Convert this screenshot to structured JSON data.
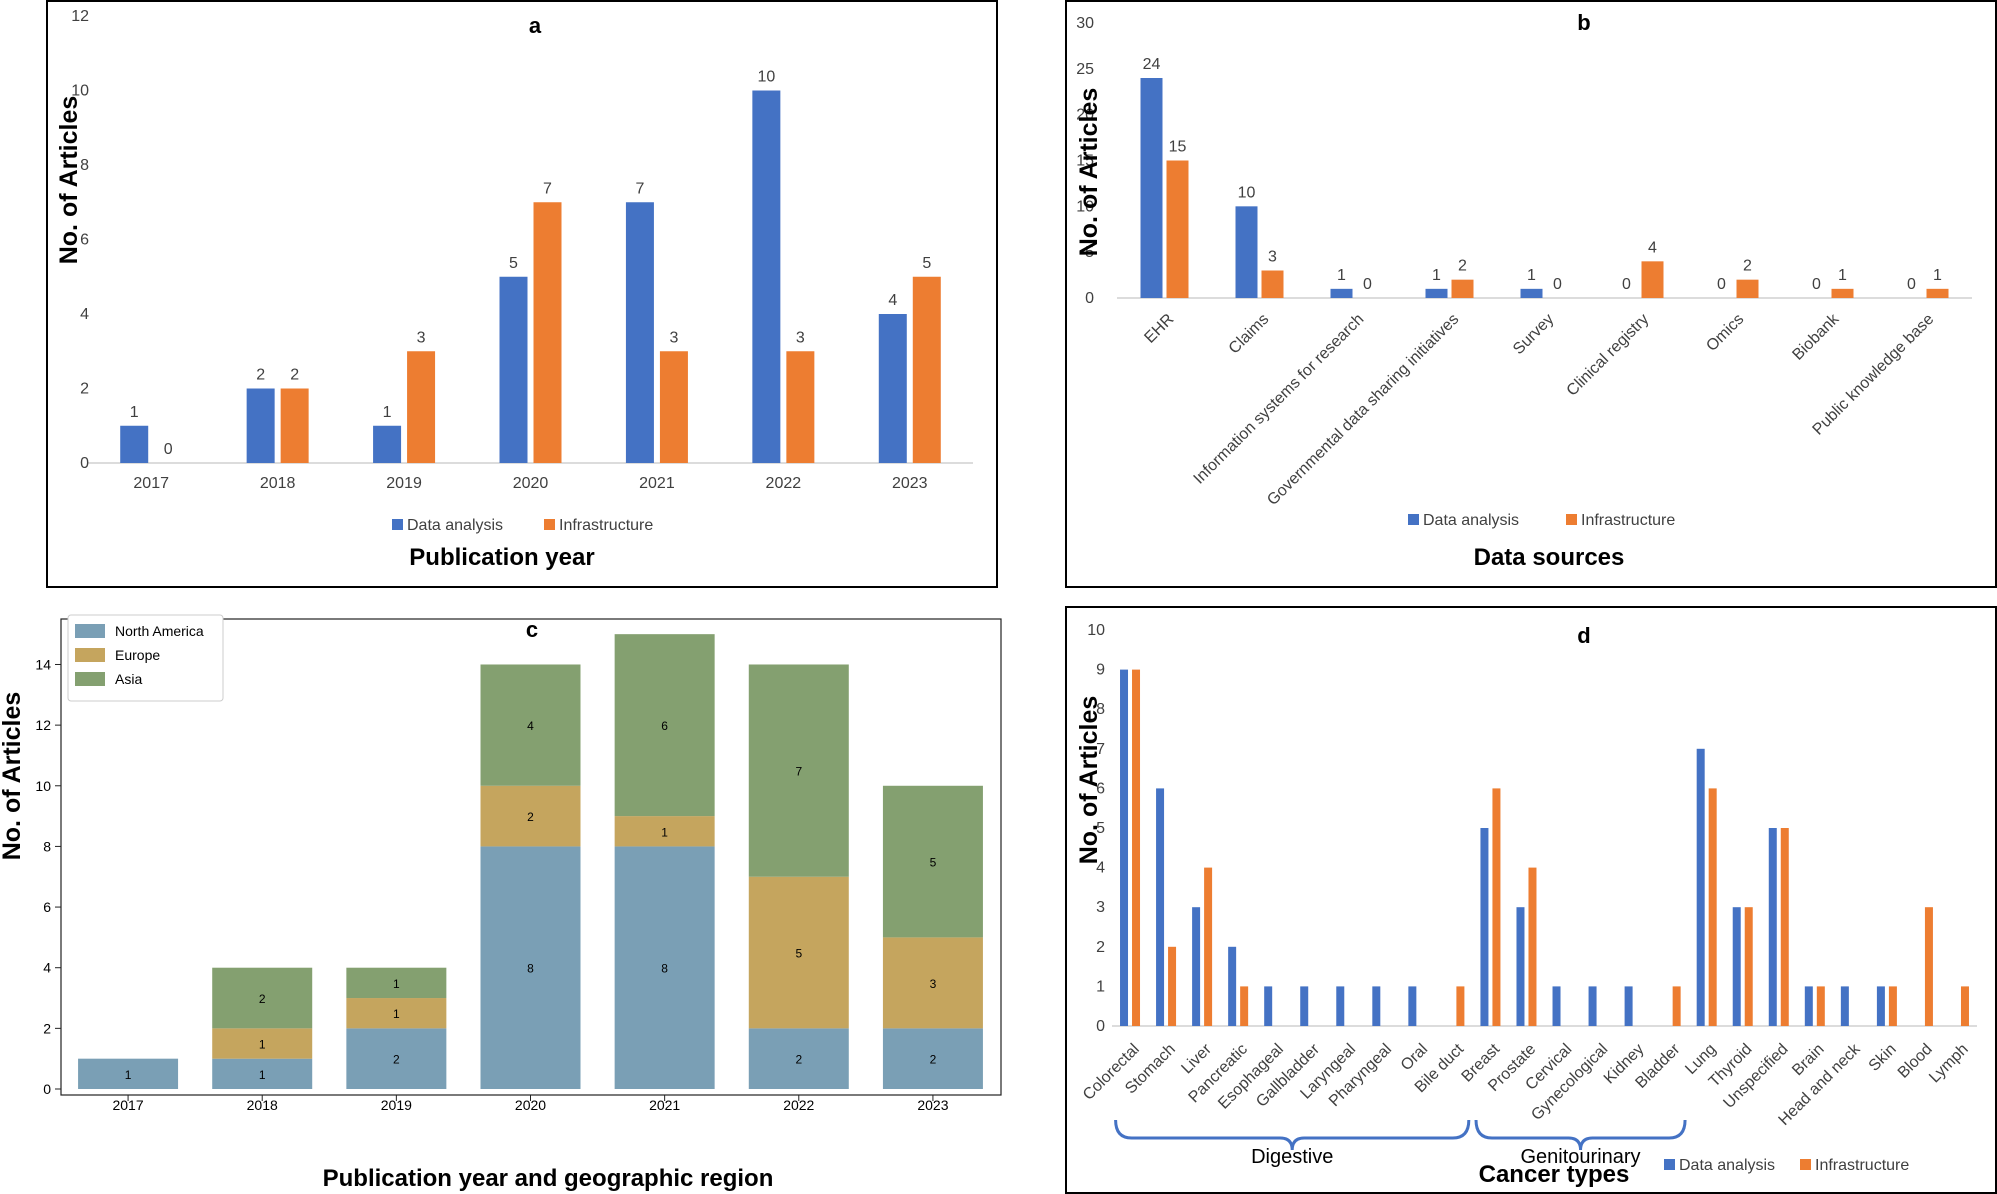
{
  "colors": {
    "data_analysis": "#4472C4",
    "infrastructure": "#ED7D31",
    "north_america": "#7A9FB5",
    "europe": "#C5A55E",
    "asia": "#84A070",
    "axis": "#D0D0D0",
    "text": "#404040"
  },
  "chart_data": [
    {
      "id": "a",
      "type": "bar",
      "title": "a",
      "ylabel": "No. of Articles",
      "xlabel": "Publication year",
      "ylim": [
        0,
        12
      ],
      "yticks": [
        0,
        2,
        4,
        6,
        8,
        10,
        12
      ],
      "categories": [
        "2017",
        "2018",
        "2019",
        "2020",
        "2021",
        "2022",
        "2023"
      ],
      "series": [
        {
          "name": "Data analysis",
          "values": [
            1,
            2,
            1,
            5,
            7,
            10,
            4
          ]
        },
        {
          "name": "Infrastructure",
          "values": [
            0,
            2,
            3,
            7,
            3,
            3,
            5
          ]
        }
      ],
      "legend": [
        "Data analysis",
        "Infrastructure"
      ]
    },
    {
      "id": "b",
      "type": "bar",
      "title": "b",
      "ylabel": "No. of Articles",
      "xlabel": "Data sources",
      "ylim": [
        0,
        30
      ],
      "yticks": [
        0,
        5,
        10,
        15,
        20,
        25,
        30
      ],
      "categories": [
        "EHR",
        "Claims",
        "Information systems for research",
        "Governmental data sharing initiatives",
        "Survey",
        "Clinical registry",
        "Omics",
        "Biobank",
        "Public knowledge base"
      ],
      "series": [
        {
          "name": "Data analysis",
          "values": [
            24,
            10,
            1,
            1,
            1,
            0,
            0,
            0,
            0
          ]
        },
        {
          "name": "Infrastructure",
          "values": [
            15,
            3,
            0,
            2,
            0,
            4,
            2,
            1,
            1
          ]
        }
      ],
      "legend": [
        "Data analysis",
        "Infrastructure"
      ]
    },
    {
      "id": "c",
      "type": "bar",
      "stacked": true,
      "title": "c",
      "ylabel": "No. of Articles",
      "xlabel": "Publication year and geographic region",
      "ylim": [
        0,
        15.5
      ],
      "yticks": [
        0,
        2,
        4,
        6,
        8,
        10,
        12,
        14
      ],
      "categories": [
        "2017",
        "2018",
        "2019",
        "2020",
        "2021",
        "2022",
        "2023"
      ],
      "series": [
        {
          "name": "North America",
          "values": [
            1,
            1,
            2,
            8,
            8,
            2,
            2
          ]
        },
        {
          "name": "Europe",
          "values": [
            0,
            1,
            1,
            2,
            1,
            5,
            3
          ]
        },
        {
          "name": "Asia",
          "values": [
            0,
            2,
            1,
            4,
            6,
            7,
            5
          ]
        }
      ],
      "legend": [
        "North America",
        "Europe",
        "Asia"
      ],
      "legend_position": "top-left"
    },
    {
      "id": "d",
      "type": "bar",
      "title": "d",
      "ylabel": "No. of Articles",
      "xlabel": "Cancer types",
      "ylim": [
        0,
        10
      ],
      "yticks": [
        0,
        1,
        2,
        3,
        4,
        5,
        6,
        7,
        8,
        9,
        10
      ],
      "categories": [
        "Colorectal",
        "Stomach",
        "Liver",
        "Pancreatic",
        "Esophageal",
        "Gallbladder",
        "Laryngeal",
        "Pharyngeal",
        "Oral",
        "Bile duct",
        "Breast",
        "Prostate",
        "Cervical",
        "Gynecological",
        "Kidney",
        "Bladder",
        "Lung",
        "Thyroid",
        "Unspecified",
        "Brain",
        "Head and neck",
        "Skin",
        "Blood",
        "Lymph"
      ],
      "series": [
        {
          "name": "Data analysis",
          "values": [
            9,
            6,
            3,
            2,
            1,
            1,
            1,
            1,
            1,
            0,
            5,
            3,
            1,
            1,
            1,
            0,
            7,
            3,
            5,
            1,
            1,
            1,
            0,
            0
          ]
        },
        {
          "name": "Infrastructure",
          "values": [
            9,
            2,
            4,
            1,
            0,
            0,
            0,
            0,
            0,
            1,
            6,
            4,
            0,
            0,
            0,
            1,
            6,
            3,
            5,
            1,
            0,
            1,
            3,
            1
          ]
        }
      ],
      "groups": [
        {
          "label": "Digestive",
          "from": 0,
          "to": 9
        },
        {
          "label": "Genitourinary",
          "from": 10,
          "to": 15
        }
      ],
      "legend": [
        "Data analysis",
        "Infrastructure"
      ]
    }
  ]
}
